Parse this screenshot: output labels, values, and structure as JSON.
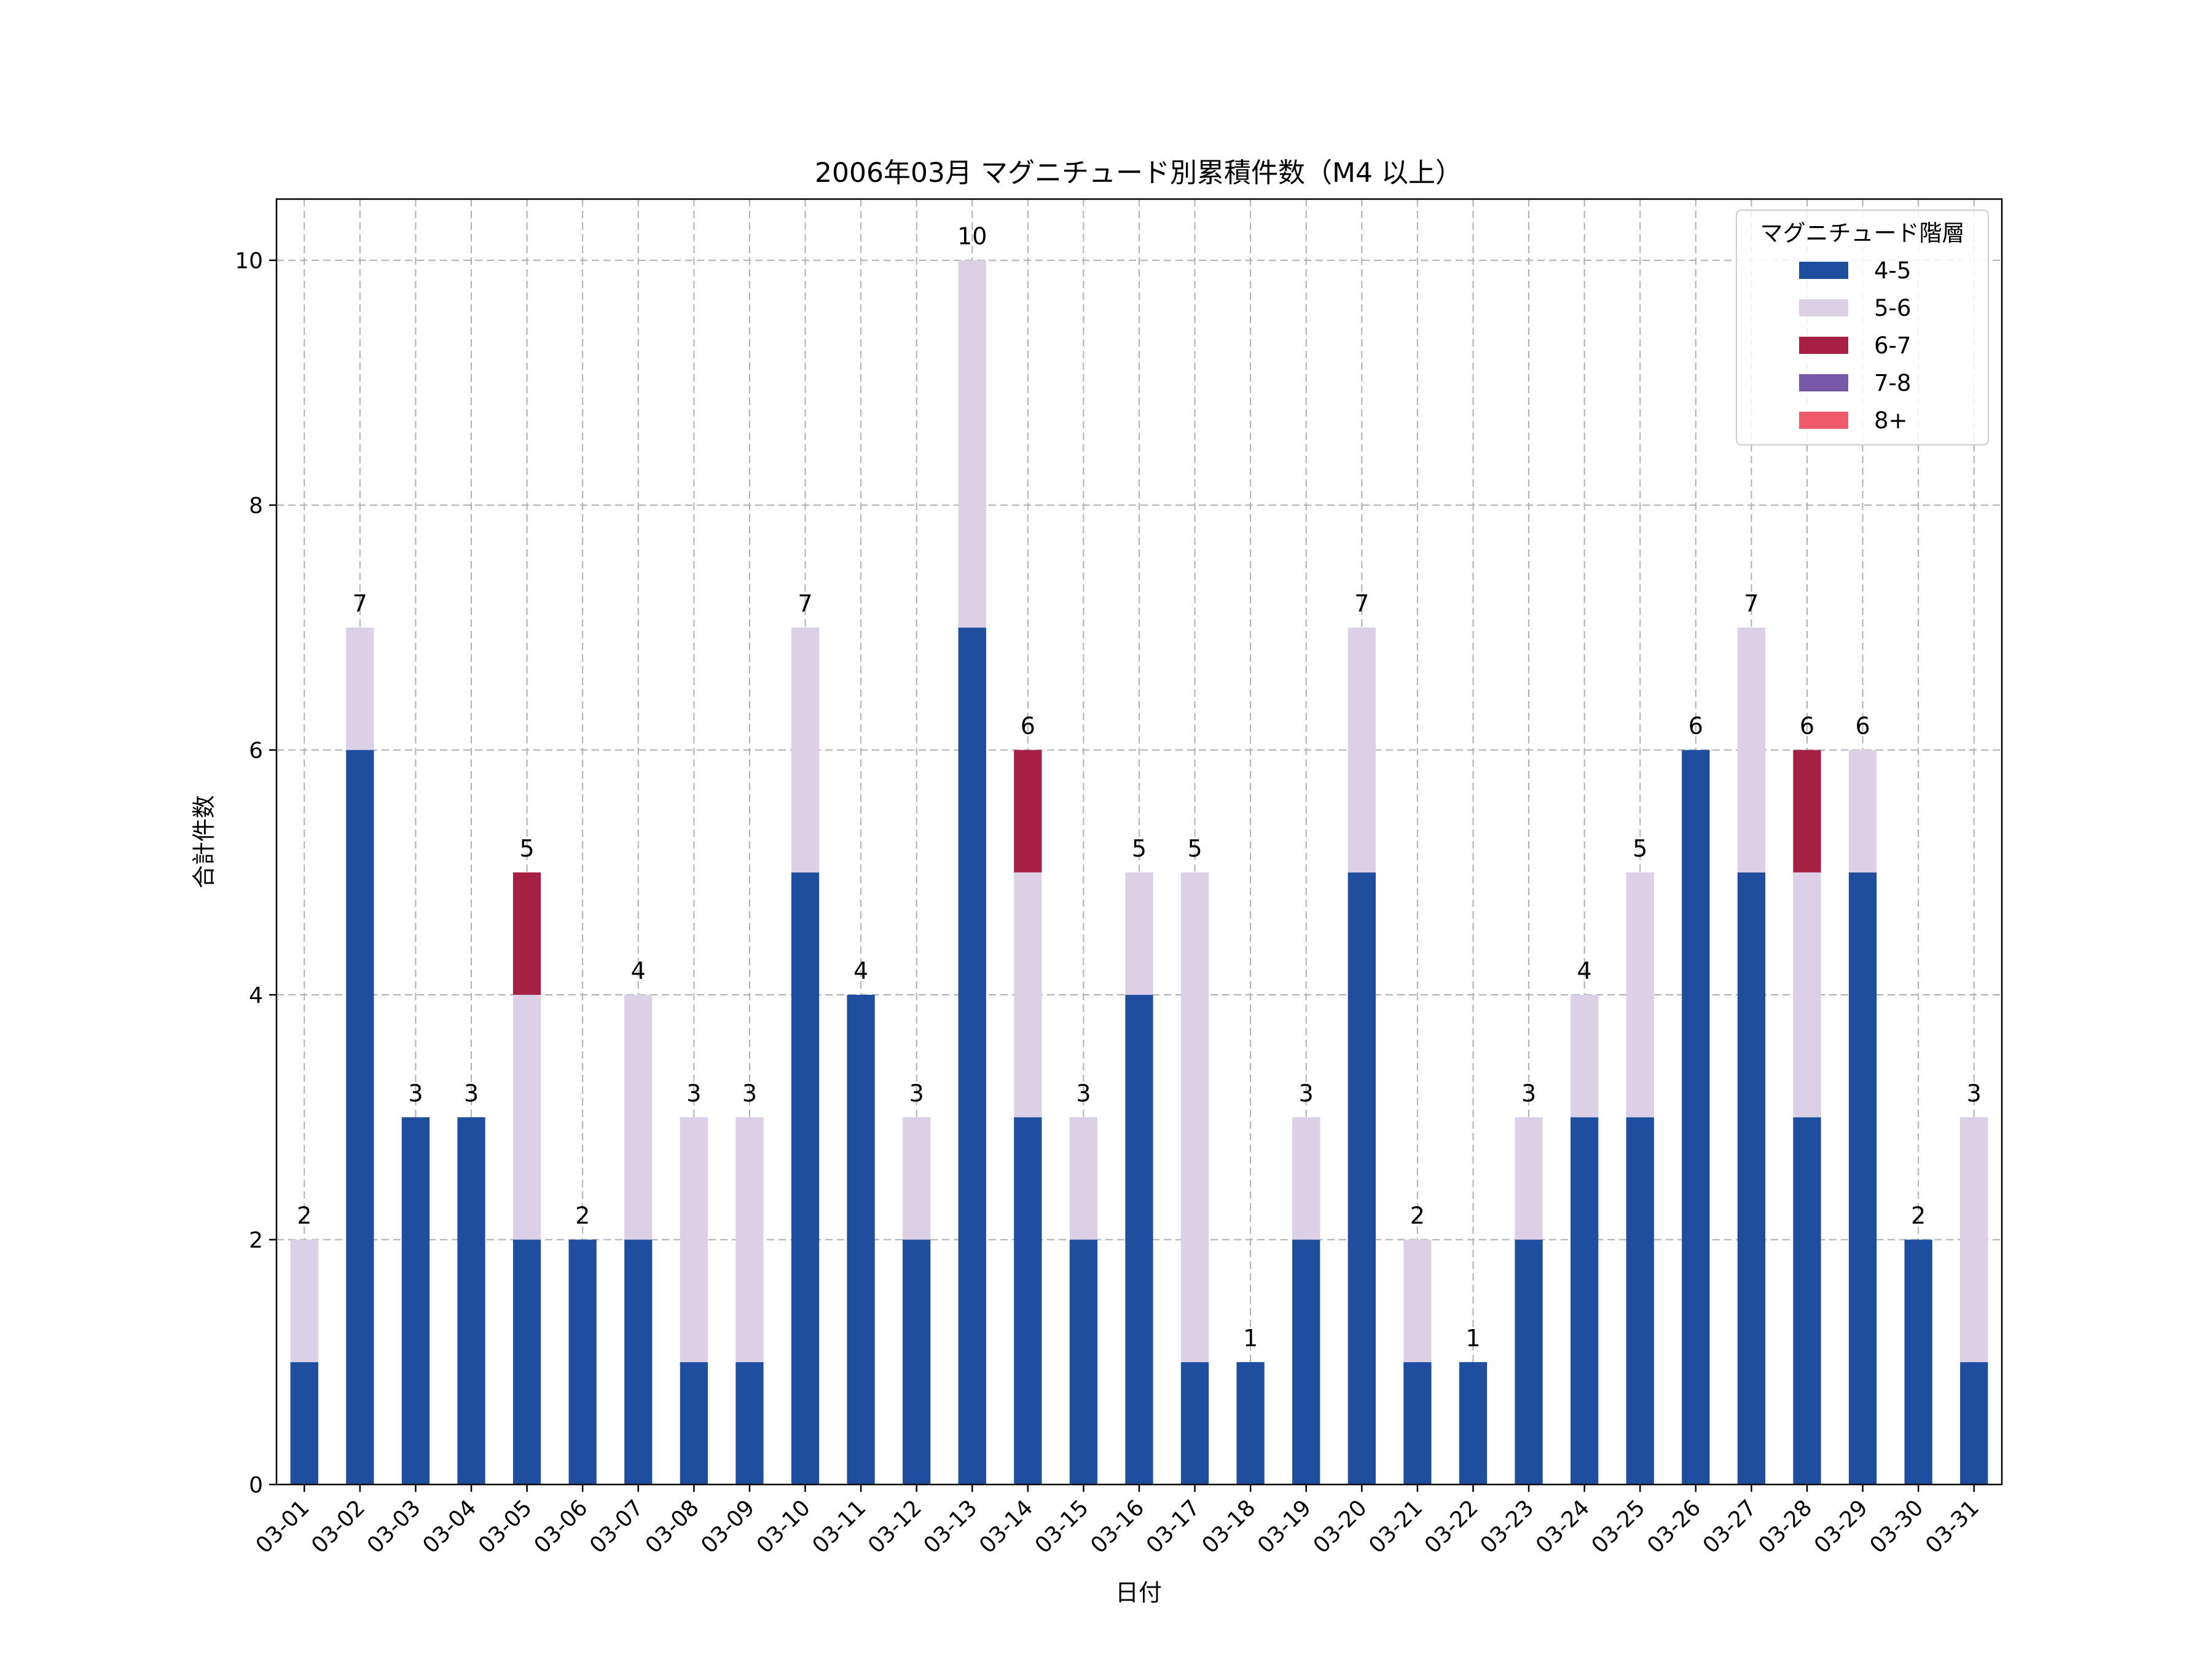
{
  "chart_data": {
    "type": "bar",
    "stacked": true,
    "title": "2006年03月 マグニチュード別累積件数（M4 以上）",
    "xlabel": "日付",
    "ylabel": "合計件数",
    "ylim": [
      0,
      10.5
    ],
    "yticks": [
      0,
      2,
      4,
      6,
      8,
      10
    ],
    "grid": true,
    "legend": {
      "title": "マグニチュード階層",
      "placement": "top-right"
    },
    "categories": [
      "03-01",
      "03-02",
      "03-03",
      "03-04",
      "03-05",
      "03-06",
      "03-07",
      "03-08",
      "03-09",
      "03-10",
      "03-11",
      "03-12",
      "03-13",
      "03-14",
      "03-15",
      "03-16",
      "03-17",
      "03-18",
      "03-19",
      "03-20",
      "03-21",
      "03-22",
      "03-23",
      "03-24",
      "03-25",
      "03-26",
      "03-27",
      "03-28",
      "03-29",
      "03-30",
      "03-31"
    ],
    "series": [
      {
        "name": "4-5",
        "color": "#1f4e9e",
        "values": [
          1,
          6,
          3,
          3,
          2,
          2,
          2,
          1,
          1,
          5,
          4,
          2,
          7,
          3,
          2,
          4,
          1,
          1,
          2,
          5,
          1,
          1,
          2,
          3,
          3,
          6,
          5,
          3,
          5,
          2,
          1
        ]
      },
      {
        "name": "5-6",
        "color": "#dbd0e5",
        "values": [
          1,
          1,
          0,
          0,
          2,
          0,
          2,
          2,
          2,
          2,
          0,
          1,
          3,
          2,
          1,
          1,
          4,
          0,
          1,
          2,
          1,
          0,
          1,
          1,
          2,
          0,
          2,
          2,
          1,
          0,
          2
        ]
      },
      {
        "name": "6-7",
        "color": "#a61f45",
        "values": [
          0,
          0,
          0,
          0,
          1,
          0,
          0,
          0,
          0,
          0,
          0,
          0,
          0,
          1,
          0,
          0,
          0,
          0,
          0,
          0,
          0,
          0,
          0,
          0,
          0,
          0,
          0,
          1,
          0,
          0,
          0
        ]
      },
      {
        "name": "7-8",
        "color": "#7759a8",
        "values": [
          0,
          0,
          0,
          0,
          0,
          0,
          0,
          0,
          0,
          0,
          0,
          0,
          0,
          0,
          0,
          0,
          0,
          0,
          0,
          0,
          0,
          0,
          0,
          0,
          0,
          0,
          0,
          0,
          0,
          0,
          0
        ]
      },
      {
        "name": "8+",
        "color": "#ee5a6a",
        "values": [
          0,
          0,
          0,
          0,
          0,
          0,
          0,
          0,
          0,
          0,
          0,
          0,
          0,
          0,
          0,
          0,
          0,
          0,
          0,
          0,
          0,
          0,
          0,
          0,
          0,
          0,
          0,
          0,
          0,
          0,
          0
        ]
      }
    ],
    "totals": [
      2,
      7,
      3,
      3,
      5,
      2,
      4,
      3,
      3,
      7,
      4,
      3,
      10,
      6,
      3,
      5,
      5,
      1,
      3,
      7,
      2,
      1,
      3,
      4,
      5,
      6,
      7,
      6,
      6,
      2,
      3
    ]
  }
}
